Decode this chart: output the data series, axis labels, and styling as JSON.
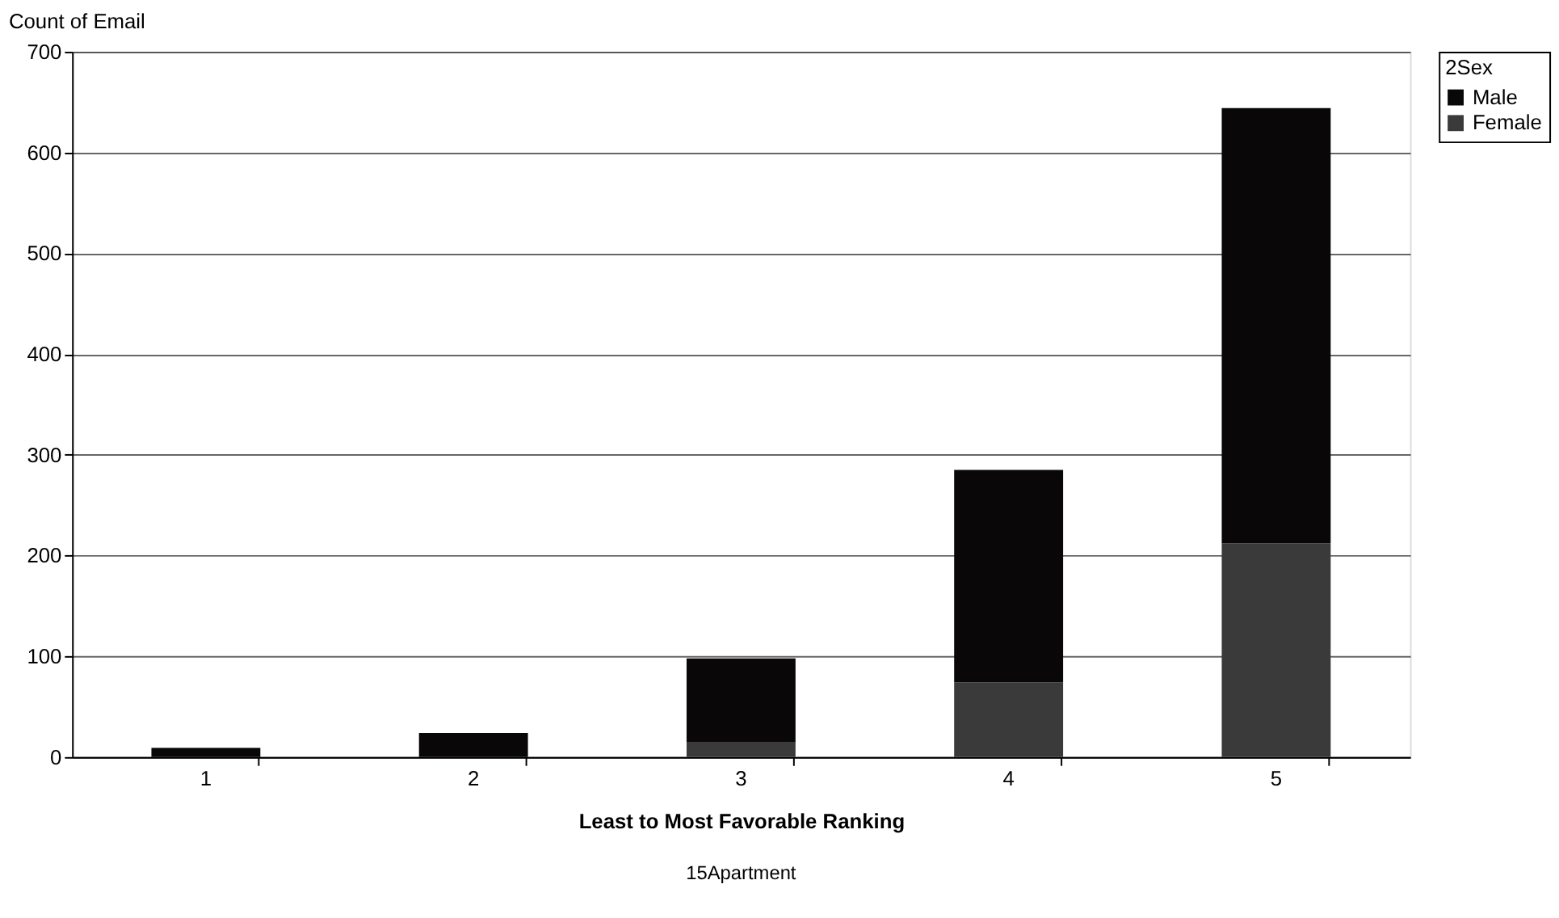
{
  "chart_data": {
    "type": "bar",
    "stacked": true,
    "ylabel": "Count of Email",
    "xlabel": "Least to Most Favorable Ranking",
    "legend_title": "2Sex",
    "annotations": [
      "15Apartment"
    ],
    "categories": [
      "1",
      "2",
      "3",
      "4",
      "5"
    ],
    "series": [
      {
        "name": "Female",
        "color": "#3a3a3a",
        "values": [
          0,
          0,
          15,
          74,
          212
        ]
      },
      {
        "name": "Male",
        "color": "#0a0708",
        "values": [
          9,
          24,
          83,
          211,
          432
        ]
      }
    ],
    "ylim": [
      0,
      700
    ],
    "yticks": [
      0,
      100,
      200,
      300,
      400,
      500,
      600,
      700
    ],
    "grid": "y",
    "legend": "right"
  }
}
